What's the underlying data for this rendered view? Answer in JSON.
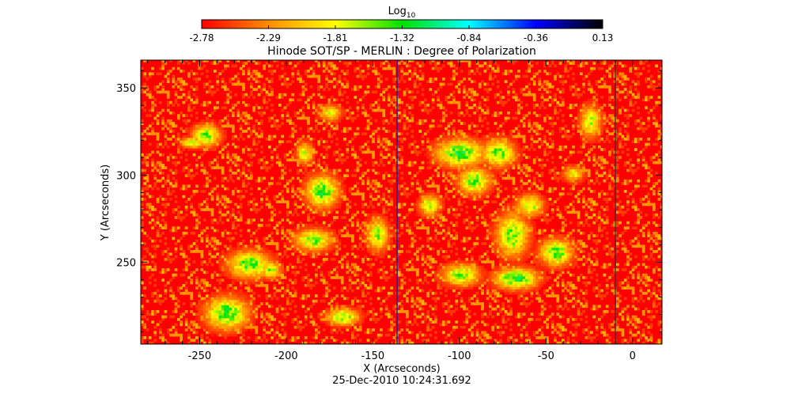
{
  "chart_data": {
    "type": "heatmap",
    "title": "Hinode SOT/SP - MERLIN : Degree of Polarization",
    "xlabel": "X (Arcseconds)",
    "ylabel": "Y (Arcseconds)",
    "timestamp": "25-Dec-2010 10:24:31.692",
    "xlim": [
      -284,
      17
    ],
    "ylim": [
      203,
      366
    ],
    "x_ticks": [
      -250,
      -200,
      -150,
      -100,
      -50,
      0
    ],
    "y_ticks": [
      250,
      300,
      350
    ],
    "colorbar": {
      "label_base": "Log",
      "label_sub": "10",
      "min": -2.78,
      "max": 0.13,
      "tick_labels": [
        "-2.78",
        "-2.29",
        "-1.81",
        "-1.32",
        "-0.84",
        "-0.36",
        "0.13"
      ],
      "colors": [
        "#ff0000",
        "#ff8c00",
        "#ffff00",
        "#00e000",
        "#00ffff",
        "#0000ff",
        "#000000"
      ]
    },
    "background_value": -2.78,
    "vertical_lines": [
      {
        "x": -136,
        "color": "#2020a0"
      },
      {
        "x": -10,
        "color": "#303030"
      }
    ],
    "patches": [
      {
        "x": -247,
        "y": 322,
        "sx": 5,
        "sy": 4,
        "peak": -1.4
      },
      {
        "x": -255,
        "y": 318,
        "sx": 4,
        "sy": 2,
        "peak": -1.6
      },
      {
        "x": -180,
        "y": 290,
        "sx": 6,
        "sy": 6,
        "peak": -1.35
      },
      {
        "x": -185,
        "y": 262,
        "sx": 7,
        "sy": 4,
        "peak": -1.5
      },
      {
        "x": -190,
        "y": 312,
        "sx": 3,
        "sy": 4,
        "peak": -1.7
      },
      {
        "x": -222,
        "y": 248,
        "sx": 8,
        "sy": 5,
        "peak": -1.4
      },
      {
        "x": -235,
        "y": 220,
        "sx": 8,
        "sy": 6,
        "peak": -1.35
      },
      {
        "x": -168,
        "y": 218,
        "sx": 6,
        "sy": 3,
        "peak": -1.45
      },
      {
        "x": -148,
        "y": 265,
        "sx": 4,
        "sy": 6,
        "peak": -1.6
      },
      {
        "x": -175,
        "y": 335,
        "sx": 4,
        "sy": 3,
        "peak": -1.8
      },
      {
        "x": -210,
        "y": 245,
        "sx": 4,
        "sy": 3,
        "peak": -1.6
      },
      {
        "x": -100,
        "y": 312,
        "sx": 9,
        "sy": 5,
        "peak": -1.3
      },
      {
        "x": -78,
        "y": 312,
        "sx": 6,
        "sy": 5,
        "peak": -1.4
      },
      {
        "x": -92,
        "y": 296,
        "sx": 6,
        "sy": 5,
        "peak": -1.5
      },
      {
        "x": -70,
        "y": 265,
        "sx": 6,
        "sy": 8,
        "peak": -1.45
      },
      {
        "x": -68,
        "y": 240,
        "sx": 8,
        "sy": 4,
        "peak": -1.3
      },
      {
        "x": -45,
        "y": 255,
        "sx": 6,
        "sy": 5,
        "peak": -1.4
      },
      {
        "x": -100,
        "y": 242,
        "sx": 7,
        "sy": 4,
        "peak": -1.55
      },
      {
        "x": -25,
        "y": 330,
        "sx": 4,
        "sy": 6,
        "peak": -1.7
      },
      {
        "x": -118,
        "y": 282,
        "sx": 4,
        "sy": 4,
        "peak": -1.7
      },
      {
        "x": -35,
        "y": 300,
        "sx": 4,
        "sy": 3,
        "peak": -1.9
      },
      {
        "x": -60,
        "y": 282,
        "sx": 5,
        "sy": 4,
        "peak": -1.6
      }
    ]
  }
}
